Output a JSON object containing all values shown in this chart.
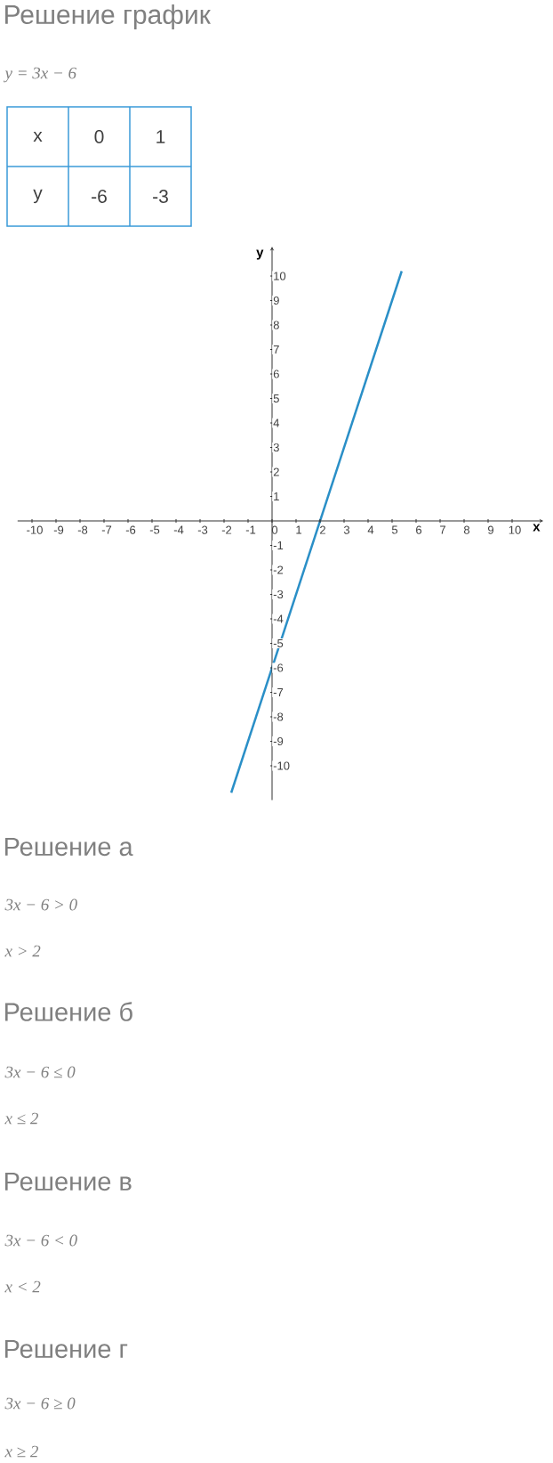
{
  "chart_data": {
    "type": "line",
    "title": "Решение график",
    "xlabel": "x",
    "ylabel": "y",
    "x": [
      -1.7,
      5.4
    ],
    "series": [
      {
        "color": "#2a8fc7",
        "values": [
          -11.1,
          10.2
        ]
      }
    ],
    "xlim": [
      -10.6,
      11.3
    ],
    "ylim": [
      -11.4,
      11.2
    ],
    "xticks": [
      -10,
      -9,
      -8,
      -7,
      -6,
      -5,
      -4,
      -3,
      -2,
      -1,
      0,
      1,
      2,
      3,
      4,
      5,
      6,
      7,
      8,
      9,
      10
    ],
    "yticks": [
      -10,
      -9,
      -8,
      -7,
      -6,
      -5,
      -4,
      -3,
      -2,
      -1,
      1,
      2,
      3,
      4,
      5,
      6,
      7,
      8,
      9,
      10
    ],
    "grid": false,
    "marker": "none",
    "line_style": "solid",
    "annotations": [
      "y = 3x − 6",
      "x",
      "0",
      "1",
      "y",
      "-6",
      "-3",
      "Решение а",
      "3x − 6 > 0",
      "x > 2",
      "Решение б",
      "3x − 6 ≤ 0",
      "x ≤ 2",
      "Решение в",
      "3x − 6 < 0",
      "x < 2",
      "Решение г",
      "3x − 6 ≥ 0",
      "x ≥ 2"
    ]
  }
}
